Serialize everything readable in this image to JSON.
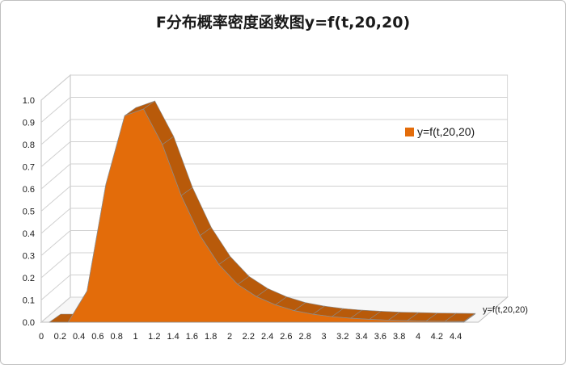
{
  "chart_data": {
    "type": "area",
    "title": "F分布概率密度函数图y=f(t,20,20)",
    "xlabel": "",
    "ylabel": "",
    "ylim": [
      0,
      1.0
    ],
    "yticks": [
      0.0,
      0.1,
      0.2,
      0.3,
      0.4,
      0.5,
      0.6,
      0.7,
      0.8,
      0.9,
      1.0
    ],
    "ytick_labels": [
      "0.0",
      "0.1",
      "0.2",
      "0.3",
      "0.4",
      "0.5",
      "0.6",
      "0.7",
      "0.8",
      "0.9",
      "1.0"
    ],
    "categories": [
      "0",
      "0.2",
      "0.4",
      "0.6",
      "0.8",
      "1",
      "1.2",
      "1.4",
      "1.6",
      "1.8",
      "2",
      "2.2",
      "2.4",
      "2.6",
      "2.8",
      "3",
      "3.2",
      "3.4",
      "3.6",
      "3.8",
      "4",
      "4.2",
      "4.4"
    ],
    "series": [
      {
        "name": "y=f(t,20,20)",
        "color": "#e36c0a",
        "values": [
          0.0,
          0.0,
          0.14,
          0.62,
          0.93,
          0.96,
          0.8,
          0.57,
          0.39,
          0.26,
          0.17,
          0.115,
          0.078,
          0.052,
          0.036,
          0.025,
          0.018,
          0.013,
          0.009,
          0.007,
          0.005,
          0.004,
          0.003
        ]
      }
    ],
    "depth_axis_label": "y=f(t,20,20)",
    "grid": true,
    "legend_position": "right",
    "three_d": true
  }
}
